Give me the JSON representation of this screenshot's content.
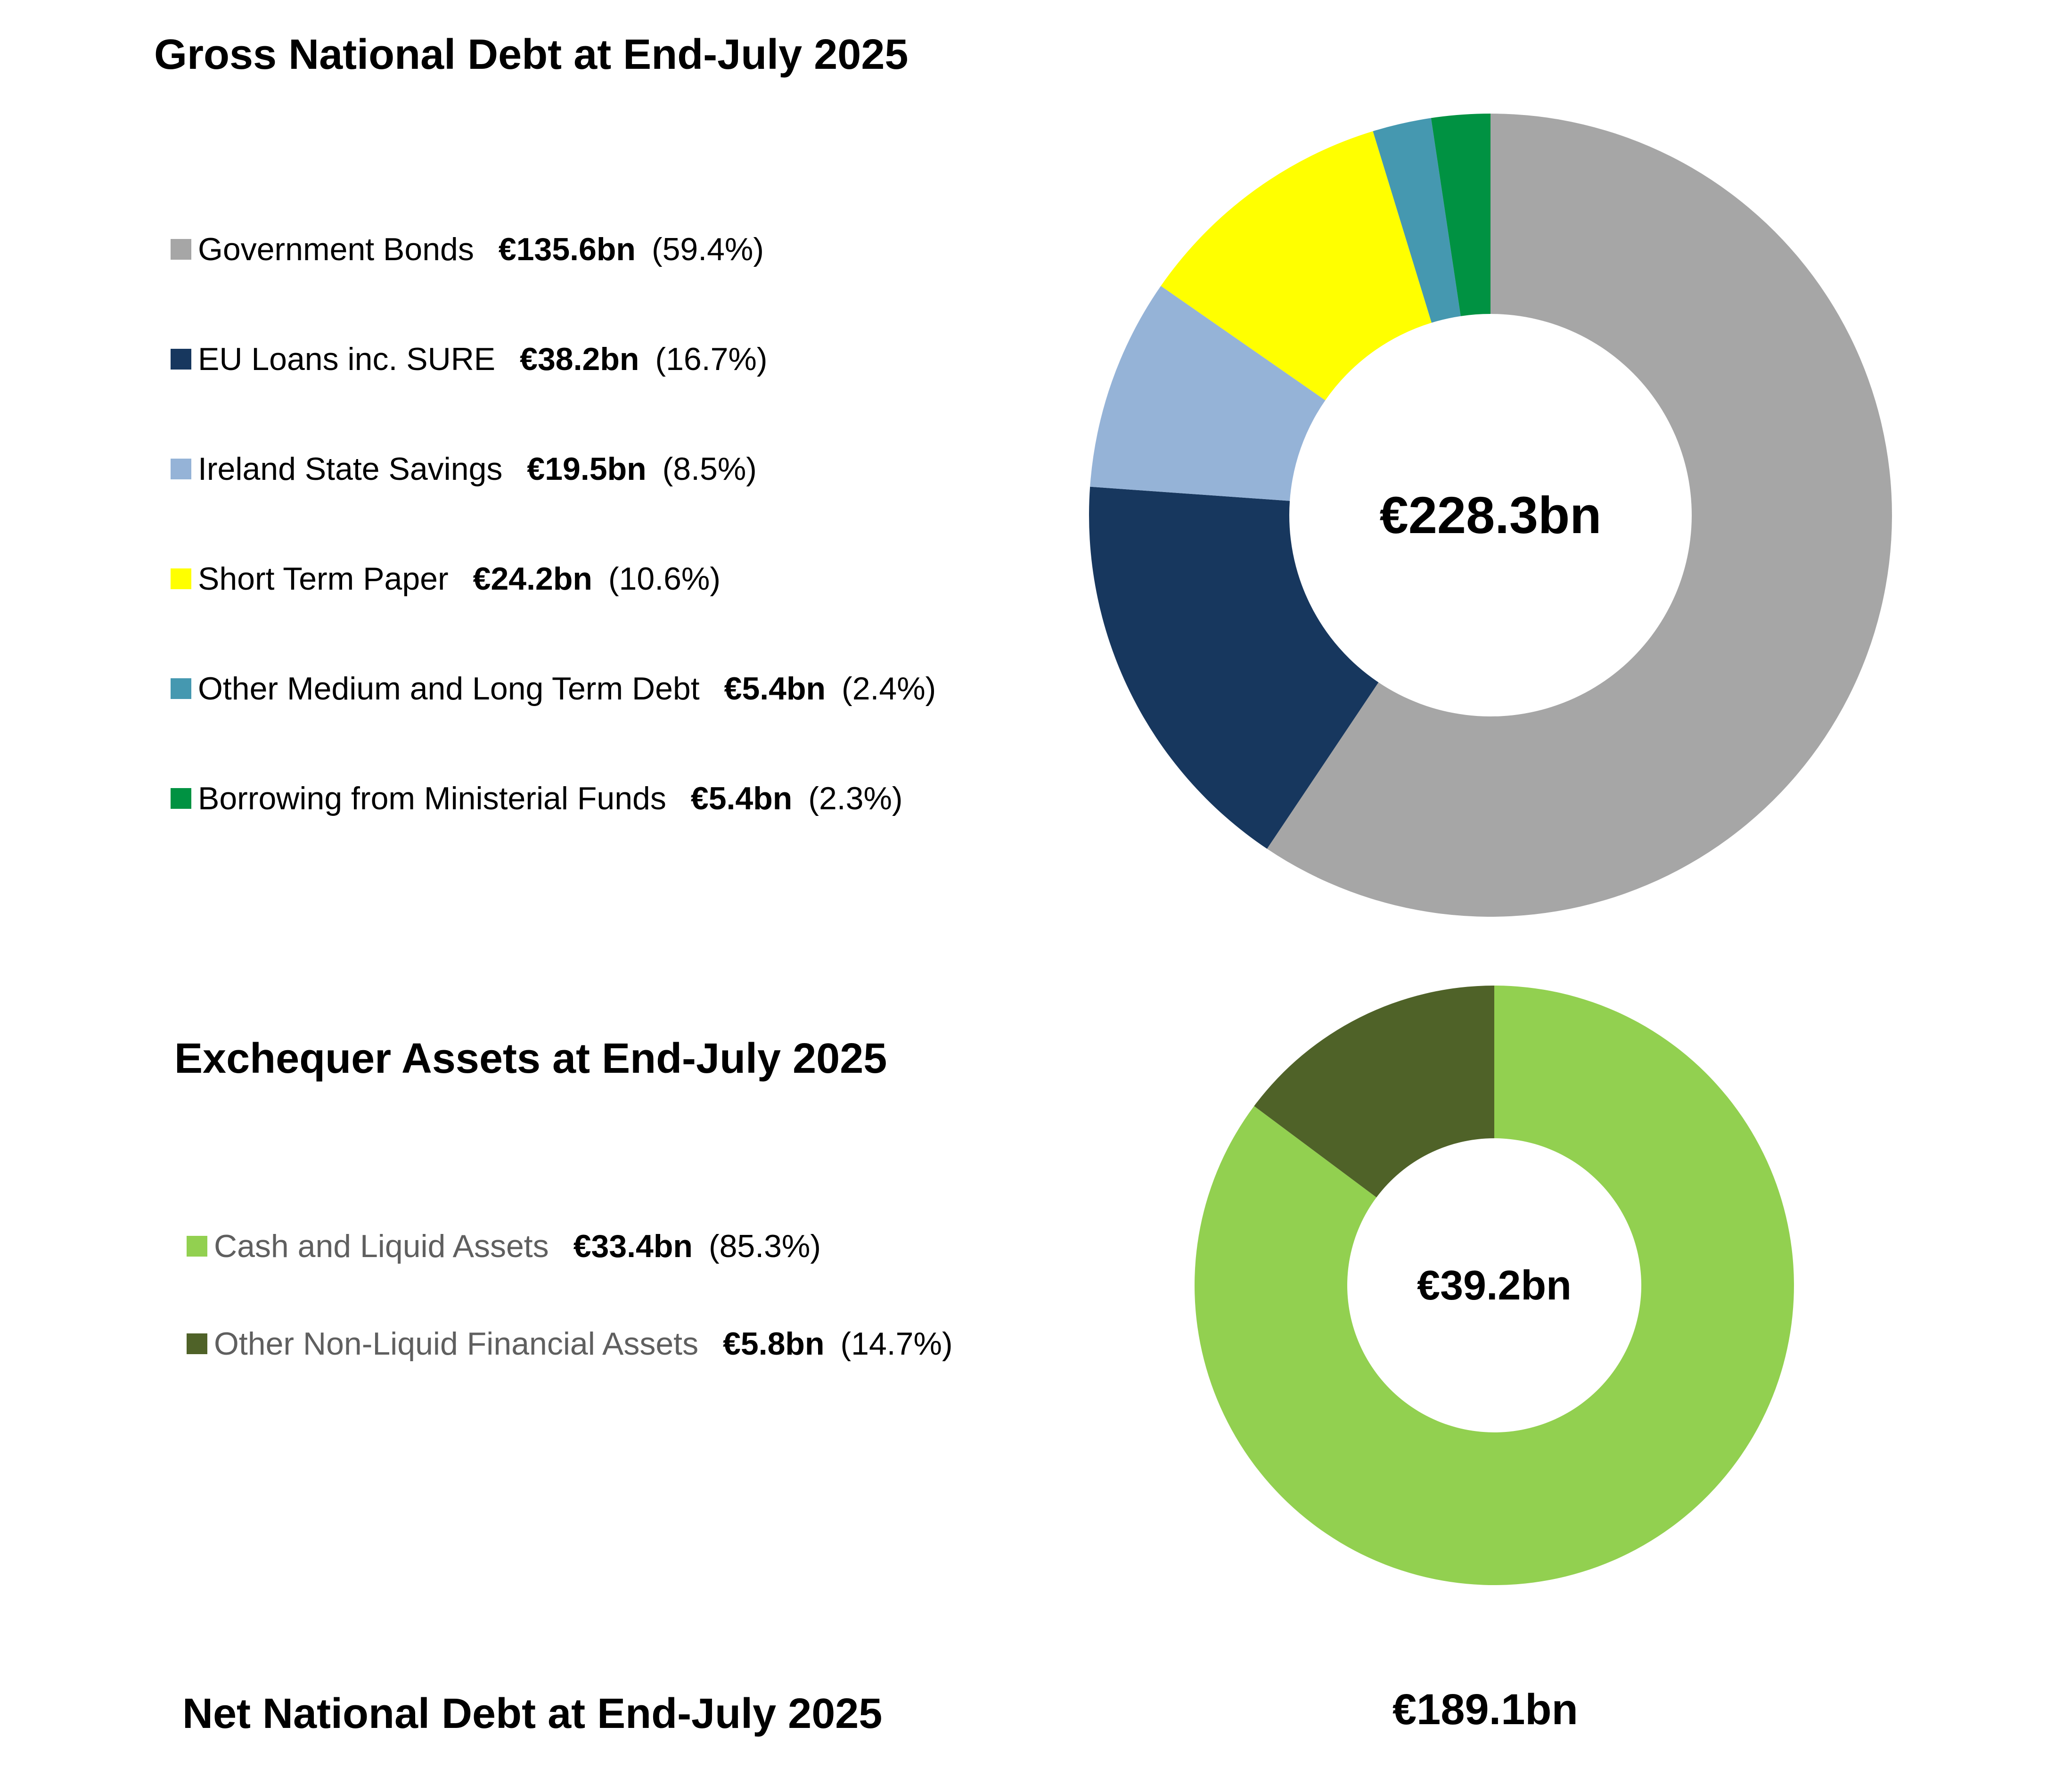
{
  "chart_data": [
    {
      "type": "pie",
      "title": "Gross National Debt at End-July 2025",
      "center_label": "€228.3bn",
      "legend_position": "left",
      "slices": [
        {
          "label": "Government Bonds",
          "value_text": "€135.6bn",
          "pct_text": "(59.4%)",
          "value": 135.6,
          "color": "#A6A6A6"
        },
        {
          "label": "EU Loans inc. SURE",
          "value_text": "€38.2bn",
          "pct_text": "(16.7%)",
          "value": 38.2,
          "color": "#17375E"
        },
        {
          "label": "Ireland State Savings",
          "value_text": "€19.5bn",
          "pct_text": "(8.5%)",
          "value": 19.5,
          "color": "#95B3D7"
        },
        {
          "label": "Short Term Paper",
          "value_text": "€24.2bn",
          "pct_text": "(10.6%)",
          "value": 24.2,
          "color": "#FFFF00"
        },
        {
          "label": "Other Medium and Long Term Debt",
          "value_text": "€5.4bn",
          "pct_text": "(2.4%)",
          "value": 5.4,
          "color": "#4598B0"
        },
        {
          "label": "Borrowing from Ministerial Funds",
          "value_text": "€5.4bn",
          "pct_text": "(2.3%)",
          "value": 5.4,
          "color": "#009242"
        }
      ]
    },
    {
      "type": "pie",
      "title": "Exchequer Assets at End-July 2025",
      "center_label": "€39.2bn",
      "legend_position": "left",
      "slices": [
        {
          "label": "Cash and Liquid Assets",
          "value_text": "€33.4bn",
          "pct_text": "(85.3%)",
          "value": 33.4,
          "color": "#92D050"
        },
        {
          "label": "Other Non-Liquid Financial Assets",
          "value_text": "€5.8bn",
          "pct_text": "(14.7%)",
          "value": 5.8,
          "color": "#4F6228"
        }
      ]
    }
  ],
  "net": {
    "title": "Net National Debt at End-July 2025",
    "value": "€189.1bn"
  }
}
